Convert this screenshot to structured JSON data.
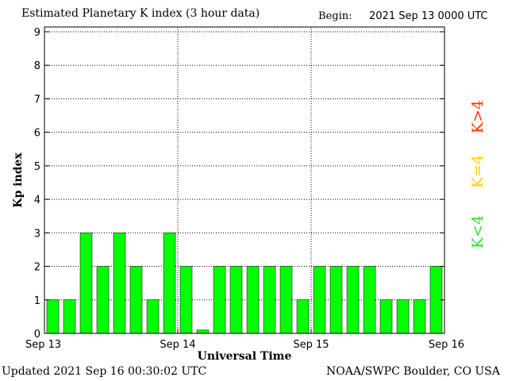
{
  "header": {
    "title": "Estimated Planetary K index (3 hour data)",
    "begin_label": "Begin:",
    "begin_value": "2021 Sep 13 0000 UTC"
  },
  "footer": {
    "updated": "Updated 2021 Sep 16 00:30:02 UTC",
    "source": "NOAA/SWPC Boulder, CO USA"
  },
  "chart_data": {
    "type": "bar",
    "xlabel": "Universal Time",
    "ylabel": "Kp index",
    "ylim": [
      0,
      9
    ],
    "y_ticks": [
      "0",
      "1",
      "2",
      "3",
      "4",
      "5",
      "6",
      "7",
      "8",
      "9"
    ],
    "x_tick_labels": [
      "Sep 13",
      "Sep 14",
      "Sep 15",
      "Sep 16"
    ],
    "grid": "dotted",
    "bar_color": "#00ff00",
    "values": [
      1,
      1,
      3,
      2,
      3,
      2,
      1,
      3,
      2,
      0.1,
      2,
      2,
      2,
      2,
      2,
      1,
      2,
      2,
      2,
      2,
      1,
      1,
      1,
      2
    ],
    "legend": [
      {
        "label": "K>4",
        "color": "#ff3300"
      },
      {
        "label": "K=4",
        "color": "#ffcc00"
      },
      {
        "label": "K<4",
        "color": "#33dd33"
      }
    ]
  }
}
